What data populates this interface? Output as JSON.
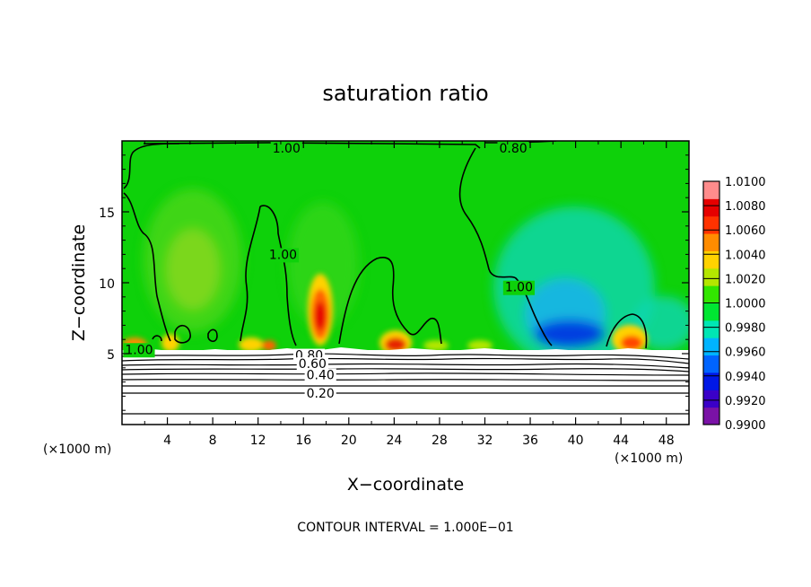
{
  "chart_data": {
    "type": "heatmap",
    "title": "saturation ratio",
    "xlabel": "X−coordinate",
    "ylabel": "Z−coordinate",
    "x_unit_left": "(×1000 m)",
    "x_unit_right": "(×1000 m)",
    "xlim": [
      0,
      50
    ],
    "ylim": [
      0,
      20
    ],
    "x_ticks": [
      4,
      8,
      12,
      16,
      20,
      24,
      28,
      32,
      36,
      40,
      44,
      48
    ],
    "x_tick_labels": [
      "4",
      "8",
      "12",
      "16",
      "20",
      "24",
      "28",
      "32",
      "36",
      "40",
      "44",
      "48"
    ],
    "y_ticks": [
      5,
      10,
      15
    ],
    "y_tick_labels": [
      "5",
      "10",
      "15"
    ],
    "colorbar": {
      "min": 0.99,
      "max": 1.01,
      "ticks": [
        1.01,
        1.008,
        1.006,
        1.004,
        1.002,
        1.0,
        0.998,
        0.996,
        0.994,
        0.992,
        0.99
      ],
      "tick_labels": [
        "1.0100",
        "1.0080",
        "1.0060",
        "1.0040",
        "1.0020",
        "1.0000",
        "0.9980",
        "0.9960",
        "0.9940",
        "0.9920",
        "0.9900"
      ],
      "colors": [
        "#7a12a6",
        "#3a00c8",
        "#0018e6",
        "#0064ff",
        "#00b4ff",
        "#00e6b4",
        "#00e632",
        "#32e600",
        "#b4e600",
        "#ffd200",
        "#ff8c00",
        "#ff3200",
        "#e60000",
        "#ff8c8c"
      ]
    },
    "background_value": 0.9999,
    "features": [
      {
        "x": 6,
        "z": 11,
        "value": 1.0018
      },
      {
        "x": 17.5,
        "z": 8,
        "value": 1.0065
      },
      {
        "x": 23.5,
        "z": 5.7,
        "value": 1.007
      },
      {
        "x": 40,
        "z": 5.8,
        "value": 0.993
      },
      {
        "x": 45,
        "z": 6,
        "value": 1.005
      },
      {
        "x": 2,
        "z": 5.8,
        "value": 1.004
      }
    ],
    "contour_labels": [
      {
        "text": "1.00",
        "x": 14.5,
        "z": 19.5
      },
      {
        "text": "0.80",
        "x": 34.5,
        "z": 19.5
      },
      {
        "text": "1.00",
        "x": 14.2,
        "z": 12
      },
      {
        "text": "1.00",
        "x": 35,
        "z": 9.7
      },
      {
        "text": "1.00",
        "x": 1.5,
        "z": 5.3
      },
      {
        "text": "0.80",
        "x": 16.5,
        "z": 4.9
      },
      {
        "text": "0.60",
        "x": 16.8,
        "z": 4.3
      },
      {
        "text": "0.40",
        "x": 17.5,
        "z": 3.5
      },
      {
        "text": "0.20",
        "x": 17.5,
        "z": 2.2
      }
    ],
    "contour_interval_text": "CONTOUR INTERVAL = 1.000E−01"
  }
}
